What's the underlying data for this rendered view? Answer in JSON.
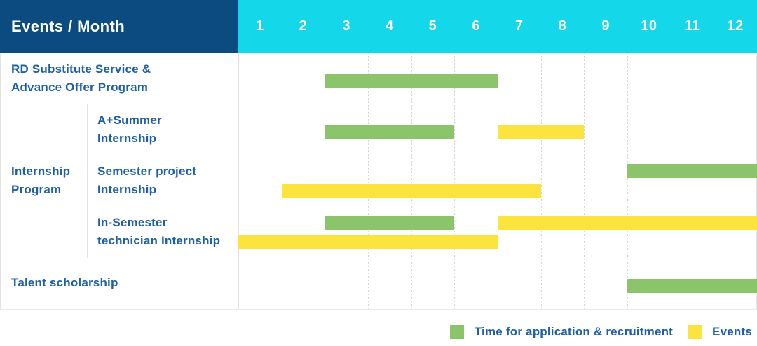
{
  "header": {
    "events_month_label": "Events / Month"
  },
  "colors": {
    "header_navy": "#0b4b80",
    "header_cyan": "#14d7ea",
    "label_blue": "#1e5fa6",
    "recruitment_green": "#8bc46a",
    "events_yellow": "#fde33e"
  },
  "chart_data": {
    "type": "bar",
    "subtype": "gantt-schedule",
    "title": "Events / Month",
    "x_label": "Month",
    "x_categories": [
      "1",
      "2",
      "3",
      "4",
      "5",
      "6",
      "7",
      "8",
      "9",
      "10",
      "11",
      "12"
    ],
    "x_range": [
      1,
      12
    ],
    "grid": true,
    "legend_position": "bottom-right",
    "legend": [
      {
        "kind": "recruitment",
        "label": "Time for application & recruitment",
        "color": "#8bc46a"
      },
      {
        "kind": "events",
        "label": "Events",
        "color": "#fde33e"
      }
    ],
    "group_label_lines": [
      "Internship",
      "Program"
    ],
    "rows": [
      {
        "group": "",
        "label": "RD Substitute Service & Advance Offer Program",
        "label_lines": [
          "RD Substitute Service &",
          "Advance Offer Program"
        ],
        "bars": [
          {
            "kind": "recruitment",
            "start_month": 3,
            "end_month": 6,
            "lane": "center"
          }
        ]
      },
      {
        "group": "Internship Program",
        "label": "A+Summer Internship",
        "label_lines": [
          "A+Summer",
          "Internship"
        ],
        "bars": [
          {
            "kind": "recruitment",
            "start_month": 3,
            "end_month": 5,
            "lane": "center"
          },
          {
            "kind": "events",
            "start_month": 7,
            "end_month": 8,
            "lane": "center"
          }
        ]
      },
      {
        "group": "Internship Program",
        "label": "Semester project Internship",
        "label_lines": [
          "Semester project",
          "Internship"
        ],
        "bars": [
          {
            "kind": "recruitment",
            "start_month": 10,
            "end_month": 12,
            "lane": "top"
          },
          {
            "kind": "events",
            "start_month": 2,
            "end_month": 7,
            "lane": "bottom"
          }
        ]
      },
      {
        "group": "Internship Program",
        "label": "In-Semester technician Internship",
        "label_lines": [
          "In-Semester",
          "technician Internship"
        ],
        "bars": [
          {
            "kind": "recruitment",
            "start_month": 3,
            "end_month": 5,
            "lane": "top"
          },
          {
            "kind": "events",
            "start_month": 7,
            "end_month": 12,
            "lane": "top"
          },
          {
            "kind": "events",
            "start_month": 1,
            "end_month": 6,
            "lane": "bottom"
          }
        ]
      },
      {
        "group": "",
        "label": "Talent scholarship",
        "label_lines": [
          "Talent scholarship"
        ],
        "bars": [
          {
            "kind": "recruitment",
            "start_month": 10,
            "end_month": 12,
            "lane": "center"
          }
        ]
      }
    ]
  }
}
